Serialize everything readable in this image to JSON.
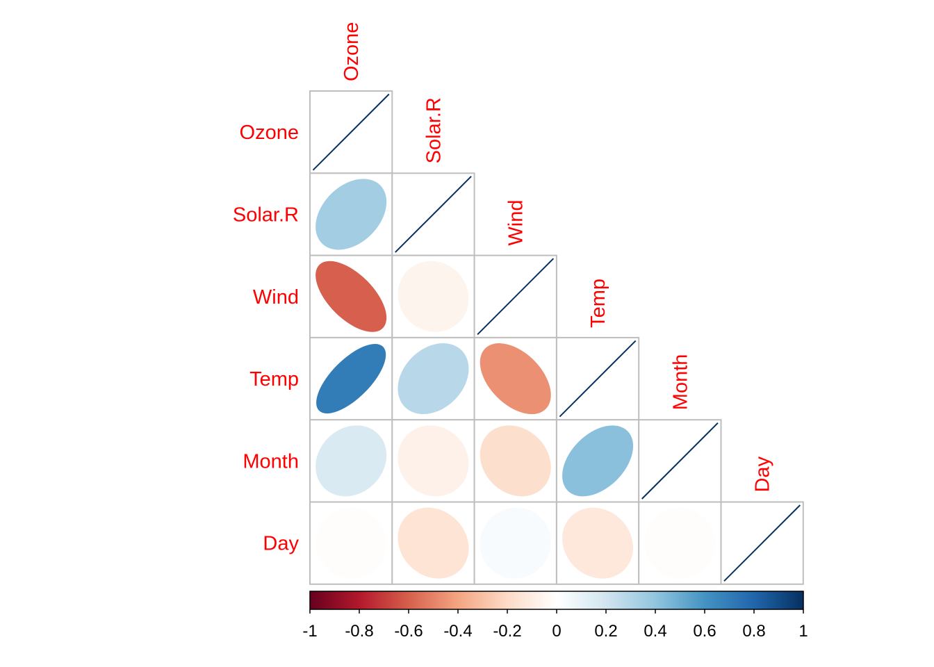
{
  "chart_data": {
    "type": "heatmap",
    "variables": [
      "Ozone",
      "Solar.R",
      "Wind",
      "Temp",
      "Month",
      "Day"
    ],
    "matrix": [
      [
        1.0,
        0.35,
        -0.6,
        0.7,
        0.16,
        -0.01
      ],
      [
        0.35,
        1.0,
        -0.06,
        0.28,
        -0.08,
        -0.15
      ],
      [
        -0.6,
        -0.06,
        1.0,
        -0.46,
        -0.18,
        0.03
      ],
      [
        0.7,
        0.28,
        -0.46,
        1.0,
        0.42,
        -0.13
      ],
      [
        0.16,
        -0.08,
        -0.18,
        0.42,
        1.0,
        -0.01
      ],
      [
        -0.01,
        -0.15,
        0.03,
        -0.13,
        -0.01,
        1.0
      ]
    ],
    "shape": "ellipse",
    "triangle": "lower",
    "colorbar": {
      "min": -1,
      "max": 1,
      "ticks": [
        "-1",
        "-0.8",
        "-0.6",
        "-0.4",
        "-0.2",
        "0",
        "0.2",
        "0.4",
        "0.6",
        "0.8",
        "1"
      ],
      "colors": [
        "#67001F",
        "#B2182B",
        "#D6604D",
        "#F4A582",
        "#FDDBC7",
        "#FFFFFF",
        "#D1E5F0",
        "#92C5DE",
        "#4393C3",
        "#2166AC",
        "#053061"
      ]
    },
    "label_color": "#FF0000",
    "grid_color": "#BEBEBE"
  }
}
